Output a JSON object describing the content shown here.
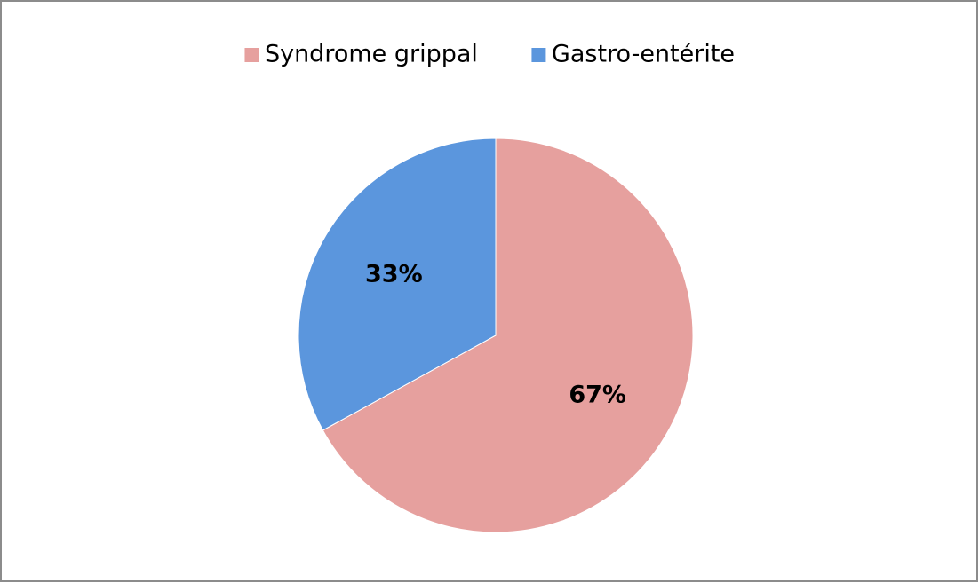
{
  "chart_data": {
    "type": "pie",
    "categories": [
      "Syndrome grippal",
      "Gastro-entérite"
    ],
    "values": [
      67,
      33
    ],
    "value_labels": [
      "67%",
      "33%"
    ],
    "colors": [
      "#e6a09e",
      "#5b96dd"
    ],
    "legend": "top"
  }
}
